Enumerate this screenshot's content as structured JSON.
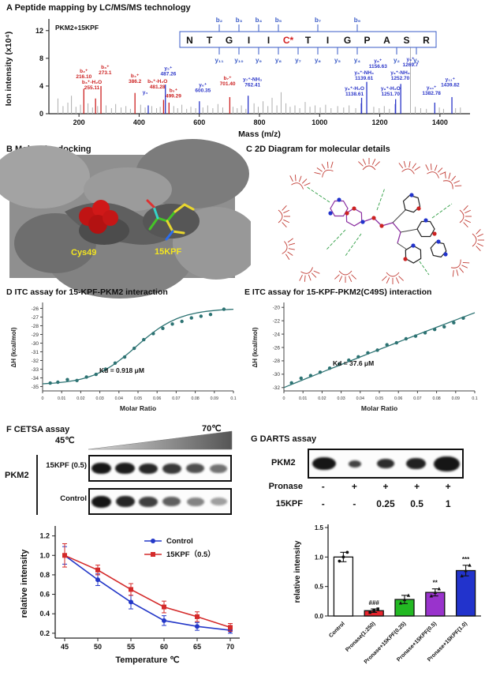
{
  "panel_a": {
    "title": "A Peptide mapping by LC/MS/MS technology",
    "sample": "PKM2+15KPF",
    "sequence": [
      {
        "aa": "N"
      },
      {
        "aa": "T"
      },
      {
        "aa": "G"
      },
      {
        "aa": "I"
      },
      {
        "aa": "I"
      },
      {
        "aa": "C*",
        "mod": true
      },
      {
        "aa": "T"
      },
      {
        "aa": "I"
      },
      {
        "aa": "G"
      },
      {
        "aa": "P"
      },
      {
        "aa": "A"
      },
      {
        "aa": "S"
      },
      {
        "aa": "R"
      }
    ],
    "b_ions": [
      {
        "label": "b₂",
        "boundary": 2
      },
      {
        "label": "b₃",
        "boundary": 3
      },
      {
        "label": "b₄",
        "boundary": 4
      },
      {
        "label": "b₅",
        "boundary": 5
      },
      {
        "label": "b₇",
        "boundary": 7
      },
      {
        "label": "b₉",
        "boundary": 9
      }
    ],
    "y_ions": [
      {
        "label": "y₁₁",
        "boundary": 2
      },
      {
        "label": "y₁₀",
        "boundary": 3
      },
      {
        "label": "y₉",
        "boundary": 4
      },
      {
        "label": "y₈",
        "boundary": 5
      },
      {
        "label": "y₇",
        "boundary": 6
      },
      {
        "label": "y₆",
        "boundary": 7
      },
      {
        "label": "y₅",
        "boundary": 8
      },
      {
        "label": "y₄",
        "boundary": 9
      },
      {
        "label": "y₂",
        "boundary": 11
      },
      {
        "label": "y₁",
        "boundary": 12
      }
    ]
  },
  "panel_b": {
    "title": "B Molecular docking",
    "cys_label": "Cys49",
    "ligand_label": "15KPF"
  },
  "panel_c": {
    "title": "C 2D Diagram for molecular details"
  },
  "panel_d": {
    "title": "D ITC assay for 15-KPF-PKM2 interaction"
  },
  "panel_e": {
    "title": "E ITC assay for 15-KPF-PKM2(C49S) interaction"
  },
  "panel_f": {
    "title": "F CETSA assay",
    "temp_start": "45℃",
    "temp_end": "70℃",
    "target": "PKM2",
    "blot_rows": [
      {
        "label": "15KPF (0.5)",
        "bands": [
          {
            "w": 25,
            "h": 14,
            "o": 1
          },
          {
            "w": 25,
            "h": 14,
            "o": 0.97
          },
          {
            "w": 24,
            "h": 13,
            "o": 0.92
          },
          {
            "w": 24,
            "h": 13,
            "o": 0.85
          },
          {
            "w": 23,
            "h": 12,
            "o": 0.75
          },
          {
            "w": 22,
            "h": 11,
            "o": 0.6
          }
        ]
      },
      {
        "label": "Control",
        "bands": [
          {
            "w": 25,
            "h": 15,
            "o": 1
          },
          {
            "w": 24,
            "h": 14,
            "o": 0.93
          },
          {
            "w": 24,
            "h": 13,
            "o": 0.82
          },
          {
            "w": 23,
            "h": 12,
            "o": 0.68
          },
          {
            "w": 22,
            "h": 11,
            "o": 0.52
          },
          {
            "w": 21,
            "h": 10,
            "o": 0.4
          }
        ]
      }
    ]
  },
  "panel_g": {
    "title": "G  DARTS assay",
    "target": "PKM2",
    "pronase_label": "Pronase",
    "pronase_values": [
      "-",
      "+",
      "+",
      "+",
      "+"
    ],
    "kpf_label": "15KPF",
    "kpf_values": [
      "-",
      "-",
      "0.25",
      "0.5",
      "1"
    ],
    "blot_bands": [
      {
        "w": 30,
        "h": 16,
        "o": 1
      },
      {
        "w": 16,
        "h": 9,
        "o": 0.8
      },
      {
        "w": 22,
        "h": 12,
        "o": 0.9
      },
      {
        "w": 25,
        "h": 14,
        "o": 0.95
      },
      {
        "w": 33,
        "h": 19,
        "o": 1
      }
    ]
  },
  "chart_data": [
    {
      "id": "ms",
      "type": "bar",
      "panel": "A",
      "title": "Peptide mapping by LC/MS/MS technology",
      "xlabel": "Mass (m/z)",
      "ylabel": "Ion intensity (x10⁴)",
      "xlim": [
        100,
        1500
      ],
      "ylim": [
        0,
        13
      ],
      "xticks": [
        200,
        400,
        600,
        800,
        1000,
        1200,
        1400
      ],
      "yticks": [
        0,
        4,
        8,
        12
      ],
      "sample": "PKM2+15KPF",
      "peak_colors": {
        "b": "#cc2020",
        "y": "#2a35c8"
      },
      "peaks": [
        {
          "mz": 216.1,
          "i": 3.6,
          "c": "b",
          "label": "b₂⁺",
          "value": "216.10",
          "ly": 4.9
        },
        {
          "mz": 255.11,
          "i": 2.2,
          "c": "b",
          "label": "b₃⁺-H₂O",
          "value": "255.11",
          "lx": 243,
          "ly": 3.3
        },
        {
          "mz": 273.13,
          "i": 4.0,
          "c": "b",
          "label": "b₃⁺",
          "value": "273.1",
          "lx": 287,
          "ly": 5.5
        },
        {
          "mz": 386.2,
          "i": 3.0,
          "c": "b",
          "label": "b₄⁺",
          "value": "386.2",
          "ly": 4.2
        },
        {
          "mz": 430.24,
          "i": 1.2,
          "c": "y",
          "label": "y₄",
          "value": "",
          "lx": 420,
          "ly": 1.8
        },
        {
          "mz": 481.28,
          "i": 2.0,
          "c": "b",
          "label": "b₅⁺-H₂O",
          "value": "481.28",
          "lx": 461,
          "ly": 3.4
        },
        {
          "mz": 487.26,
          "i": 4.2,
          "c": "y",
          "label": "y₅⁺",
          "value": "487.26",
          "lx": 497,
          "ly": 5.3
        },
        {
          "mz": 499.29,
          "i": 1.6,
          "c": "b",
          "label": "b₅⁺",
          "value": "499.29",
          "lx": 514,
          "ly": 2.1
        },
        {
          "mz": 600.35,
          "i": 1.8,
          "c": "y",
          "label": "y₆⁺",
          "value": "600.35",
          "lx": 612,
          "ly": 2.9
        },
        {
          "mz": 701.4,
          "i": 2.4,
          "c": "b",
          "label": "b₇⁺",
          "value": "701.40",
          "lx": 694,
          "ly": 3.9
        },
        {
          "mz": 762.41,
          "i": 2.6,
          "c": "y",
          "label": "y₇⁺-NH₃",
          "value": "762.41",
          "lx": 777,
          "ly": 3.7
        },
        {
          "mz": 1138.61,
          "i": 1.5,
          "c": "y",
          "label": "y₈⁺-H₂O",
          "value": "1138.61",
          "lx": 1116,
          "ly": 2.4
        },
        {
          "mz": 1139.61,
          "i": 2.3,
          "c": "y",
          "label": "y₈⁺-NH₃",
          "value": "1139.61",
          "lx": 1148,
          "ly": 4.7
        },
        {
          "mz": 1156.63,
          "i": 4.6,
          "c": "y",
          "label": "y₈⁺",
          "value": "1156.63",
          "lx": 1194,
          "ly": 6.4
        },
        {
          "mz": 1251.7,
          "i": 1.4,
          "c": "y",
          "label": "y₉⁺-H₂O",
          "value": "1251.70",
          "lx": 1236,
          "ly": 2.4
        },
        {
          "mz": 1252.7,
          "i": 2.1,
          "c": "y",
          "label": "y₉⁺-NH₃",
          "value": "1252.70",
          "lx": 1268,
          "ly": 4.7
        },
        {
          "mz": 1269.7,
          "i": 4.3,
          "c": "y",
          "label": "y₉⁺",
          "value": "1269.7",
          "lx": 1302,
          "ly": 6.6
        },
        {
          "mz": 1382.78,
          "i": 1.6,
          "c": "y",
          "label": "y₁₀⁺",
          "value": "1382.78",
          "lx": 1372,
          "ly": 2.5
        },
        {
          "mz": 1439.82,
          "i": 2.4,
          "c": "y",
          "label": "y₁₁⁺",
          "value": "1439.82",
          "lx": 1434,
          "ly": 3.7
        }
      ],
      "noise": [
        [
          130,
          2.2
        ],
        [
          147,
          1.1
        ],
        [
          163,
          1.6
        ],
        [
          175,
          2.6
        ],
        [
          190,
          1.0
        ],
        [
          205,
          1.3
        ],
        [
          230,
          1.5
        ],
        [
          245,
          0.9
        ],
        [
          262,
          1.1
        ],
        [
          290,
          1.2
        ],
        [
          308,
          0.8
        ],
        [
          322,
          1.4
        ],
        [
          340,
          0.9
        ],
        [
          356,
          1.1
        ],
        [
          371,
          0.7
        ],
        [
          405,
          1.3
        ],
        [
          420,
          0.9
        ],
        [
          442,
          1.1
        ],
        [
          458,
          0.8
        ],
        [
          470,
          1.0
        ],
        [
          515,
          1.1
        ],
        [
          528,
          0.8
        ],
        [
          542,
          1.3
        ],
        [
          558,
          0.7
        ],
        [
          572,
          1.0
        ],
        [
          588,
          0.8
        ],
        [
          612,
          0.9
        ],
        [
          628,
          1.2
        ],
        [
          645,
          0.8
        ],
        [
          662,
          1.4
        ],
        [
          678,
          0.9
        ],
        [
          712,
          1.0
        ],
        [
          726,
          0.8
        ],
        [
          740,
          1.2
        ],
        [
          755,
          0.7
        ],
        [
          782,
          1.5
        ],
        [
          796,
          1.0
        ],
        [
          812,
          1.8
        ],
        [
          828,
          1.1
        ],
        [
          842,
          2.3
        ],
        [
          858,
          1.2
        ],
        [
          872,
          3.1
        ],
        [
          888,
          1.5
        ],
        [
          902,
          1.0
        ],
        [
          918,
          1.2
        ],
        [
          934,
          0.8
        ],
        [
          952,
          1.7
        ],
        [
          968,
          1.0
        ],
        [
          985,
          1.2
        ],
        [
          1002,
          0.9
        ],
        [
          1020,
          1.3
        ],
        [
          1038,
          0.8
        ],
        [
          1060,
          1.1
        ],
        [
          1080,
          0.9
        ],
        [
          1098,
          1.2
        ],
        [
          1120,
          0.8
        ],
        [
          1180,
          1.0
        ],
        [
          1198,
          0.8
        ],
        [
          1215,
          1.1
        ],
        [
          1232,
          0.7
        ],
        [
          1302,
          11.2
        ],
        [
          1318,
          1.0
        ],
        [
          1336,
          0.8
        ],
        [
          1355,
          0.7
        ],
        [
          1398,
          0.9
        ],
        [
          1412,
          0.7
        ],
        [
          1452,
          0.8
        ],
        [
          1468,
          0.9
        ]
      ]
    },
    {
      "id": "itc1",
      "type": "scatter",
      "panel": "D",
      "xlabel": "Molar Ratio",
      "ylabel": "ΔH (kcal/mol)",
      "color": "#2d7373",
      "xlim": [
        0,
        0.1
      ],
      "ylim": [
        -35.5,
        -25.5
      ],
      "yticks": [
        -26,
        -27,
        -28,
        -29,
        -30,
        -31,
        -32,
        -33,
        -34,
        -35
      ],
      "xticks": [
        "0",
        "0.01",
        "0.02",
        "0.03",
        "0.04",
        "0.05",
        "0.06",
        "0.07",
        "0.08",
        "0.09",
        "0.1"
      ],
      "annotation": "Kd = 0.918 μM",
      "points": [
        [
          0.004,
          -34.6
        ],
        [
          0.008,
          -34.5
        ],
        [
          0.013,
          -34.2
        ],
        [
          0.018,
          -34.3
        ],
        [
          0.023,
          -33.9
        ],
        [
          0.028,
          -33.6
        ],
        [
          0.033,
          -33.0
        ],
        [
          0.038,
          -32.3
        ],
        [
          0.043,
          -31.6
        ],
        [
          0.048,
          -30.6
        ],
        [
          0.053,
          -29.6
        ],
        [
          0.058,
          -28.9
        ],
        [
          0.063,
          -28.3
        ],
        [
          0.068,
          -27.8
        ],
        [
          0.073,
          -27.5
        ],
        [
          0.078,
          -27.1
        ],
        [
          0.083,
          -26.9
        ],
        [
          0.088,
          -26.7
        ],
        [
          0.095,
          -26.1
        ]
      ],
      "fit": {
        "type": "sigmoid",
        "bottom": -34.8,
        "top": -26.0,
        "mid": 0.049,
        "k": 0.0115
      }
    },
    {
      "id": "itc2",
      "type": "scatter",
      "panel": "E",
      "xlabel": "Molar Ratio",
      "ylabel": "ΔH (kcal/mol)",
      "color": "#2d7373",
      "xlim": [
        0,
        0.1
      ],
      "ylim": [
        -32.5,
        -19.5
      ],
      "yticks": [
        -20,
        -22,
        -24,
        -26,
        -28,
        -30,
        -32
      ],
      "xticks": [
        "0",
        "0.01",
        "0.02",
        "0.03",
        "0.04",
        "0.05",
        "0.06",
        "0.07",
        "0.08",
        "0.09",
        "0.1"
      ],
      "annotation": "Kd = 37.6 μM",
      "points": [
        [
          0.004,
          -31.3
        ],
        [
          0.009,
          -30.6
        ],
        [
          0.014,
          -30.2
        ],
        [
          0.019,
          -29.7
        ],
        [
          0.024,
          -29.1
        ],
        [
          0.029,
          -28.5
        ],
        [
          0.034,
          -27.9
        ],
        [
          0.039,
          -27.4
        ],
        [
          0.044,
          -26.8
        ],
        [
          0.049,
          -26.4
        ],
        [
          0.054,
          -25.6
        ],
        [
          0.059,
          -25.3
        ],
        [
          0.064,
          -24.7
        ],
        [
          0.069,
          -24.3
        ],
        [
          0.074,
          -23.8
        ],
        [
          0.079,
          -23.3
        ],
        [
          0.084,
          -22.9
        ],
        [
          0.089,
          -22.3
        ],
        [
          0.094,
          -21.6
        ]
      ],
      "fit": {
        "type": "quad",
        "a": -32,
        "b": 116,
        "c": -40
      }
    },
    {
      "id": "cetsa",
      "type": "line",
      "panel": "F",
      "xlabel": "Temperature ℃",
      "ylabel": "relative intensity",
      "x": [
        45,
        50,
        55,
        60,
        65,
        70
      ],
      "ylim": [
        0.15,
        1.27
      ],
      "yticks": [
        "0.2",
        "0.4",
        "0.6",
        "0.8",
        "1.0",
        "1.2"
      ],
      "series": [
        {
          "name": "Control",
          "color": "#2438c8",
          "marker": "circle",
          "values": [
            1.0,
            0.75,
            0.52,
            0.33,
            0.27,
            0.23
          ],
          "errors": [
            0.09,
            0.06,
            0.07,
            0.05,
            0.04,
            0.03
          ]
        },
        {
          "name": "15KPF（0.5）",
          "color": "#d42a2a",
          "marker": "square",
          "values": [
            1.0,
            0.85,
            0.65,
            0.47,
            0.37,
            0.26
          ],
          "errors": [
            0.12,
            0.05,
            0.06,
            0.06,
            0.05,
            0.04
          ]
        }
      ],
      "legend_position": "top-right"
    },
    {
      "id": "darts",
      "type": "bar",
      "panel": "G",
      "ylabel": "relative intensity",
      "categories": [
        "Control",
        "Pronase(1:250)",
        "Pronase+15KPF(0.25)",
        "Pronase+15KPF(0.5)",
        "Pronase+15KPF(1.0)"
      ],
      "values": [
        1.0,
        0.09,
        0.28,
        0.4,
        0.77
      ],
      "errors": [
        0.08,
        0.03,
        0.07,
        0.06,
        0.09
      ],
      "colors": [
        "#ffffff",
        "#e8252d",
        "#23b923",
        "#9933cc",
        "#2233cc"
      ],
      "markers": [
        "circle",
        "square",
        "triangle",
        "triangle",
        "triangle"
      ],
      "sig": [
        "",
        "###",
        "",
        "**",
        "***"
      ],
      "points": [
        [
          0.93,
          1.0,
          1.08
        ],
        [
          0.06,
          0.09,
          0.12
        ],
        [
          0.22,
          0.28,
          0.35
        ],
        [
          0.34,
          0.4,
          0.46
        ],
        [
          0.68,
          0.77,
          0.86
        ]
      ],
      "ylim": [
        0,
        1.5
      ],
      "yticks": [
        "0.0",
        "0.5",
        "1.0",
        "1.5"
      ]
    }
  ]
}
